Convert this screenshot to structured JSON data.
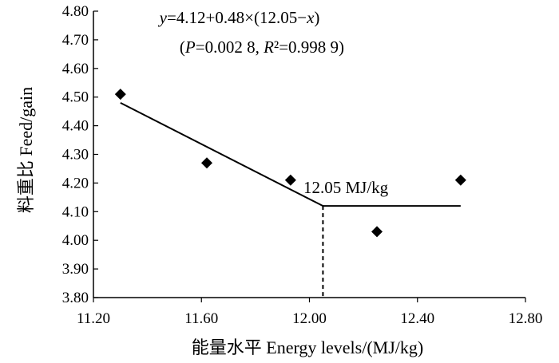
{
  "chart_data": {
    "type": "scatter",
    "xlabel": "能量水平  Energy levels/(MJ/kg)",
    "ylabel": "料重比  Feed/gain",
    "xlim": [
      11.2,
      12.8
    ],
    "ylim": [
      3.8,
      4.8
    ],
    "x_ticks": [
      "11.20",
      "11.60",
      "12.00",
      "12.40",
      "12.80"
    ],
    "y_ticks": [
      "3.80",
      "3.90",
      "4.00",
      "4.10",
      "4.20",
      "4.30",
      "4.40",
      "4.50",
      "4.60",
      "4.70",
      "4.80"
    ],
    "points": [
      {
        "x": 11.3,
        "y": 4.51
      },
      {
        "x": 11.62,
        "y": 4.27
      },
      {
        "x": 11.93,
        "y": 4.21
      },
      {
        "x": 12.25,
        "y": 4.03
      },
      {
        "x": 12.56,
        "y": 4.21
      }
    ],
    "model": {
      "equation": "y=4.12+0.48×(12.05−x)",
      "stats": "(P=0.002 8, R²=0.998 9)",
      "intercept": 4.12,
      "slope": 0.48,
      "breakpoint": 12.05,
      "fit_x_range": [
        11.3,
        12.56
      ]
    },
    "breakpoint_label": "12.05  MJ/kg",
    "grid": false,
    "marker": "diamond",
    "line_color": "#000000"
  }
}
